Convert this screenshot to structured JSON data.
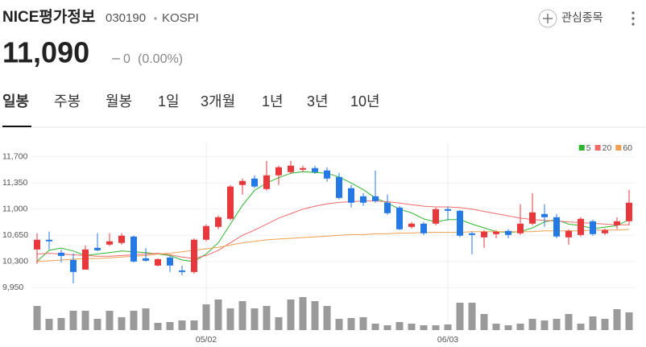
{
  "header": {
    "name": "NICE평가정보",
    "code": "030190",
    "market": "KOSPI",
    "watch": "관심종목",
    "price": "11,090",
    "change": "0",
    "change_pct": "(0.00%)"
  },
  "tabs": [
    "일봉",
    "주봉",
    "월봉",
    "1일",
    "3개월",
    "1년",
    "3년",
    "10년"
  ],
  "chart_data": {
    "type": "candlestick",
    "categories": [
      null,
      null,
      null,
      null,
      null,
      null,
      null,
      null,
      null,
      null,
      null,
      null,
      null,
      null,
      "05/02",
      null,
      null,
      null,
      null,
      null,
      null,
      null,
      null,
      null,
      null,
      null,
      null,
      null,
      null,
      null,
      null,
      null,
      null,
      null,
      "06/03",
      null,
      null,
      null,
      null,
      null,
      null,
      null,
      null,
      null,
      null,
      null,
      null,
      null,
      null,
      null
    ],
    "open": [
      10461,
      10591,
      10418,
      10321,
      10192,
      10483,
      10526,
      10548,
      10634,
      10343,
      10246,
      10354,
      10181,
      10160,
      10591,
      10763,
      10871,
      11323,
      11409,
      11269,
      11452,
      11495,
      11527,
      11549,
      11517,
      11430,
      11280,
      11172,
      11172,
      11086,
      11021,
      10763,
      10806,
      10806,
      11000,
      10978,
      10677,
      10623,
      10666,
      10709,
      10677,
      10806,
      10935,
      10892,
      10623,
      10655,
      10838,
      10677,
      10784,
      10838
    ],
    "high": [
      10677,
      10700,
      10461,
      10408,
      10515,
      10677,
      10677,
      10677,
      10645,
      10483,
      10343,
      10375,
      10246,
      10612,
      10795,
      10914,
      11323,
      11409,
      11452,
      11646,
      11581,
      11646,
      11581,
      11581,
      11560,
      11485,
      11323,
      11215,
      11517,
      11194,
      11043,
      10828,
      10828,
      11021,
      11032,
      10989,
      10698,
      10720,
      10720,
      10731,
      11065,
      11215,
      11065,
      10935,
      10731,
      10892,
      10860,
      10741,
      10892,
      11258
    ],
    "low": [
      10268,
      10461,
      10289,
      10009,
      10192,
      10440,
      10505,
      10526,
      10289,
      10300,
      10235,
      10160,
      10117,
      10138,
      10570,
      10731,
      10849,
      11194,
      11280,
      11248,
      11323,
      11474,
      11495,
      11474,
      11366,
      11129,
      11021,
      11043,
      11086,
      10925,
      10720,
      10741,
      10655,
      10784,
      10849,
      10623,
      10397,
      10483,
      10612,
      10612,
      10655,
      10784,
      10763,
      10612,
      10526,
      10634,
      10645,
      10655,
      10731,
      10784
    ],
    "close": [
      10591,
      10570,
      10375,
      10160,
      10461,
      10450,
      10570,
      10645,
      10300,
      10311,
      10332,
      10246,
      10160,
      10591,
      10774,
      10892,
      11302,
      11377,
      11302,
      11452,
      11560,
      11581,
      11549,
      11495,
      11409,
      11150,
      11086,
      11086,
      11108,
      10946,
      10731,
      10806,
      10677,
      11000,
      10978,
      10645,
      10655,
      10698,
      10698,
      10655,
      10806,
      10957,
      10892,
      10634,
      10709,
      10871,
      10666,
      10720,
      10838,
      11086
    ],
    "up_color": "#e8383b",
    "down_color": "#2479e5",
    "volume": [
      30,
      14,
      15,
      24,
      24,
      14,
      24,
      16,
      24,
      27,
      9,
      10,
      12,
      12,
      32,
      38,
      27,
      36,
      27,
      30,
      16,
      38,
      41,
      36,
      30,
      14,
      15,
      16,
      8,
      6,
      10,
      8,
      6,
      6,
      7,
      34,
      34,
      20,
      8,
      6,
      8,
      14,
      12,
      14,
      20,
      8,
      17,
      14,
      26,
      22
    ],
    "volume_color": "#9a9a9a",
    "volume_lim": [
      0,
      42
    ],
    "series": [
      {
        "name": "5",
        "color": "#2db52d",
        "values": [
          10300,
          10450,
          10480,
          10440,
          10380,
          10400,
          10420,
          10440,
          10430,
          10420,
          10400,
          10380,
          10320,
          10300,
          10400,
          10550,
          10800,
          11050,
          11250,
          11350,
          11420,
          11480,
          11500,
          11490,
          11480,
          11430,
          11350,
          11260,
          11150,
          11080,
          11000,
          10950,
          10870,
          10830,
          10860,
          10860,
          10800,
          10750,
          10700,
          10690,
          10700,
          10750,
          10830,
          10860,
          10800,
          10780,
          10740,
          10760,
          10780,
          10860
        ]
      },
      {
        "name": "20",
        "color": "#ef6b6b",
        "values": [
          10400,
          10410,
          10400,
          10390,
          10380,
          10370,
          10370,
          10380,
          10390,
          10400,
          10410,
          10390,
          10360,
          10340,
          10380,
          10450,
          10550,
          10650,
          10720,
          10800,
          10880,
          10940,
          11000,
          11040,
          11070,
          11090,
          11100,
          11110,
          11110,
          11100,
          11080,
          11060,
          11040,
          11030,
          11030,
          11020,
          11000,
          10970,
          10940,
          10910,
          10880,
          10860,
          10850,
          10840,
          10830,
          10820,
          10810,
          10800,
          10790,
          10790
        ]
      },
      {
        "name": "60",
        "color": "#f0a050",
        "values": [
          10300,
          10310,
          10320,
          10330,
          10340,
          10340,
          10350,
          10360,
          10370,
          10380,
          10400,
          10410,
          10430,
          10450,
          10470,
          10490,
          10520,
          10550,
          10570,
          10590,
          10600,
          10610,
          10620,
          10630,
          10640,
          10650,
          10660,
          10660,
          10670,
          10670,
          10680,
          10680,
          10690,
          10690,
          10690,
          10690,
          10700,
          10700,
          10700,
          10700,
          10700,
          10700,
          10710,
          10710,
          10710,
          10710,
          10720,
          10720,
          10720,
          10730
        ]
      }
    ],
    "legend_position": "top-right",
    "ylim": [
      9900,
      11880
    ],
    "yticks": [
      {
        "value": 9950,
        "label": "9,950"
      },
      {
        "value": 10300,
        "label": "10,300"
      },
      {
        "value": 10650,
        "label": "10,650"
      },
      {
        "value": 11000,
        "label": "11,000"
      },
      {
        "value": 11350,
        "label": "11,350"
      },
      {
        "value": 11700,
        "label": "11,700"
      }
    ],
    "grid": true
  }
}
